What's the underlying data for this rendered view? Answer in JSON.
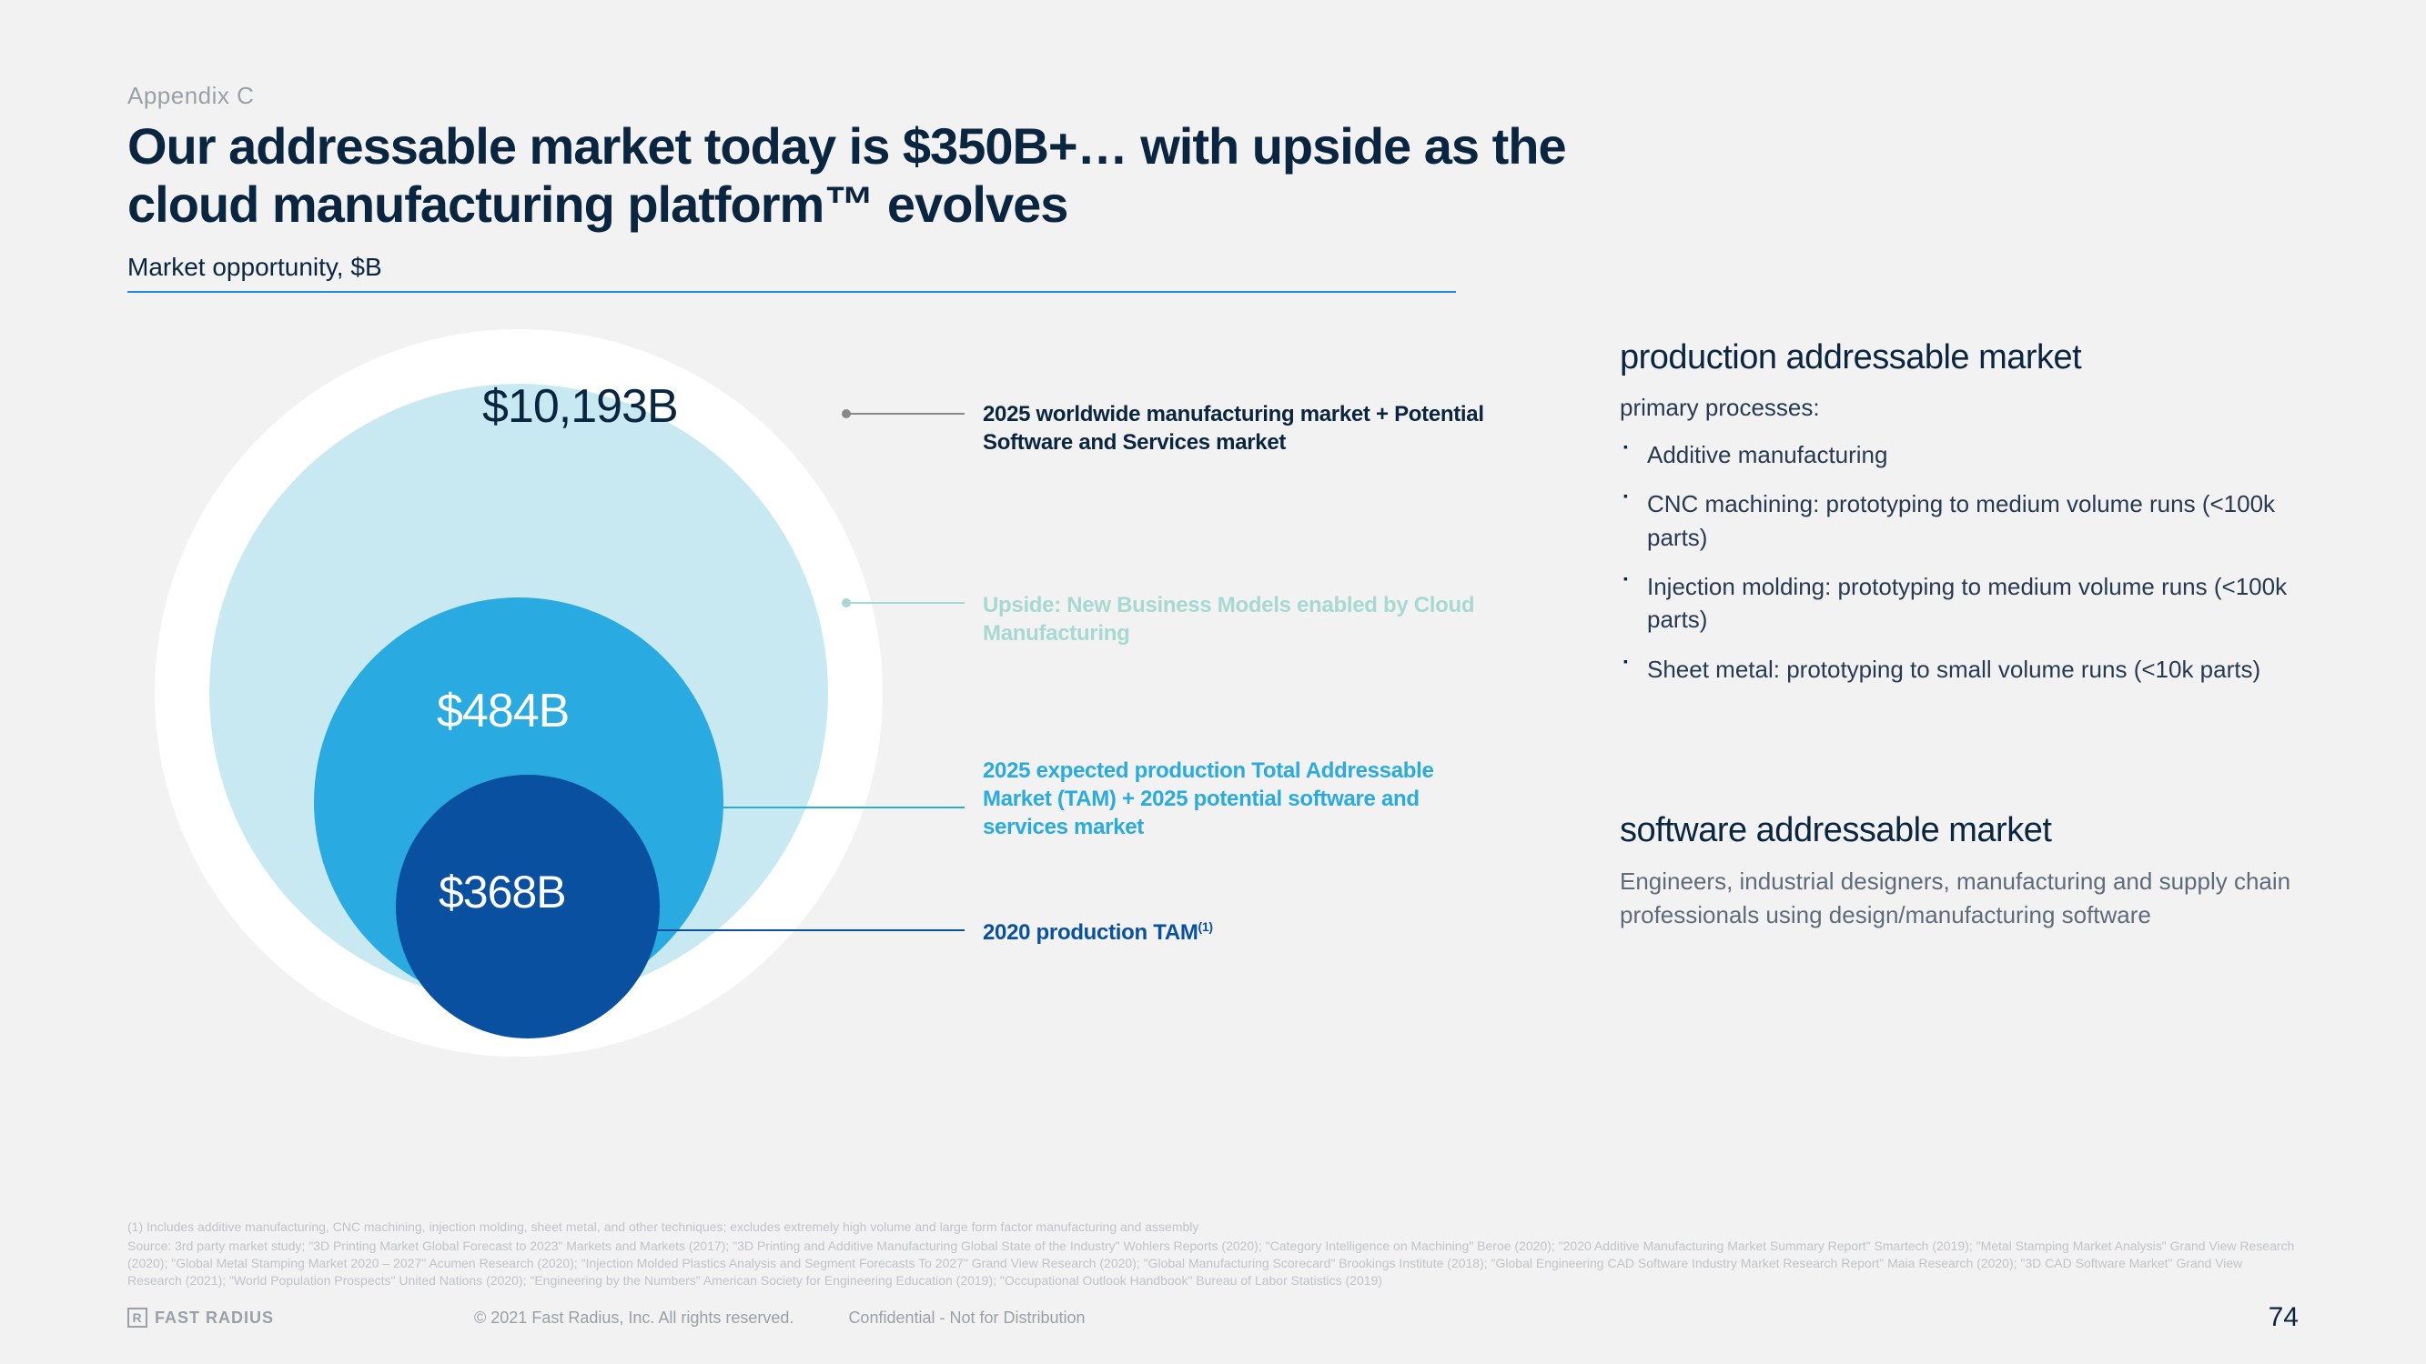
{
  "appendix": "Appendix C",
  "title_line1": "Our addressable market today is $350B+… with upside as the",
  "title_line2": "cloud manufacturing platform™ evolves",
  "subtitle": "Market opportunity, $B",
  "chart": {
    "type": "nested-circle",
    "background_color": "#f2f2f2",
    "rings": [
      {
        "value": "$10,193B",
        "radius": 400,
        "color": "#ffffff",
        "label_color": "#0a2540",
        "desc": "2025 worldwide manufacturing market + Potential Software and Services market",
        "desc_color": "#0a2540",
        "leader_color": "#888888"
      },
      {
        "value": "",
        "radius": 340,
        "color": "#c9e9f2",
        "label_color": "",
        "desc": "Upside: New Business Models enabled by Cloud Manufacturing",
        "desc_color": "#a7d9d2",
        "leader_color": "#a7d9d2"
      },
      {
        "value": "$484B",
        "radius": 225,
        "color": "#29abe2",
        "label_color": "#ffffff",
        "desc": "2025 expected production Total Addressable Market (TAM) + 2025 potential software and services market",
        "desc_color": "#29abe2",
        "leader_color": "#29abe2"
      },
      {
        "value": "$368B",
        "radius": 145,
        "color": "#0a50a0",
        "label_color": "#ffffff",
        "desc": "2020 production TAM",
        "desc_super": "(1)",
        "desc_color": "#0a50a0",
        "leader_color": "#0a50a0"
      }
    ],
    "label_fontsize": 52
  },
  "panels": {
    "production": {
      "heading": "production addressable market",
      "subheading": "primary processes:",
      "items": [
        "Additive manufacturing",
        "CNC machining: prototyping to medium volume runs (<100k parts)",
        "Injection molding: prototyping to medium volume runs (<100k parts)",
        "Sheet metal: prototyping to small volume runs (<10k parts)"
      ]
    },
    "software": {
      "heading": "software addressable market",
      "body": "Engineers, industrial designers, manufacturing and supply chain professionals using design/manufacturing software"
    }
  },
  "footnotes": [
    "(1) Includes additive manufacturing, CNC machining, injection molding, sheet metal, and other techniques; excludes extremely high volume and large form factor manufacturing and assembly",
    "Source: 3rd party market study; \"3D Printing Market Global Forecast to 2023\" Markets and Markets (2017); \"3D Printing and Additive Manufacturing Global State of the Industry\" Wohlers Reports (2020); \"Category Intelligence on Machining\" Beroe (2020); \"2020 Additive Manufacturing Market Summary Report\" Smartech (2019); \"Metal Stamping Market Analysis\" Grand View Research (2020); \"Global Metal Stamping Market 2020 – 2027\" Acumen Research (2020); \"Injection Molded Plastics Analysis and Segment Forecasts To 2027\" Grand View Research (2020); \"Global Manufacturing Scorecard\" Brookings Institute (2018); \"Global Engineering CAD Software Industry Market Research Report\" Maia Research (2020); \"3D CAD Software Market\" Grand View Research (2021); \"World Population Prospects\" United Nations (2020); \"Engineering by the Numbers\" American Society for Engineering Education (2019); \"Occupational Outlook Handbook\" Bureau of Labor Statistics (2019)"
  ],
  "footer": {
    "brand": "FAST RADIUS",
    "copyright": "© 2021 Fast Radius, Inc. All rights reserved.",
    "confidential": "Confidential - Not for Distribution",
    "page": "74"
  },
  "colors": {
    "text_primary": "#0a2540",
    "text_muted": "#9aa0a6",
    "rule": "#1e8ce6"
  }
}
